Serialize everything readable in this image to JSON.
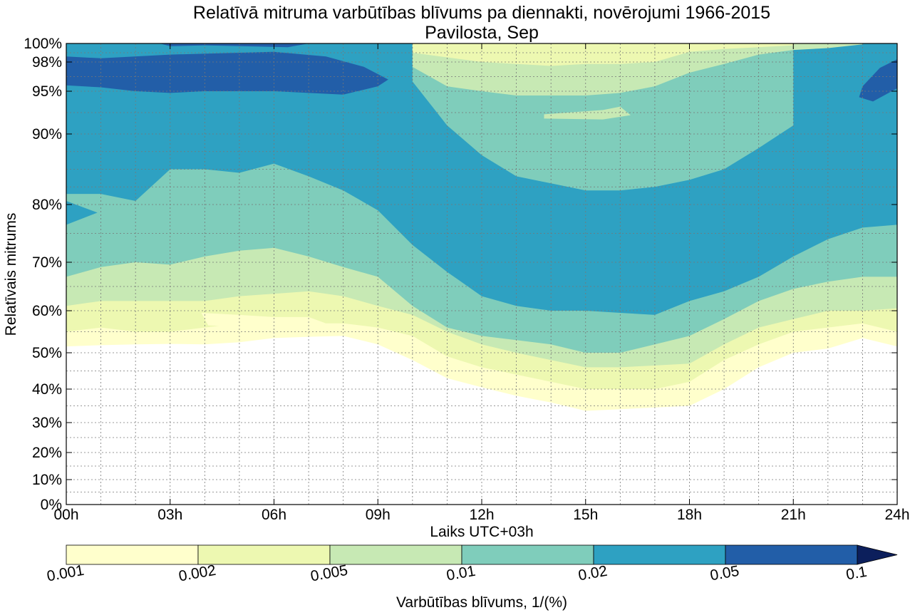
{
  "chart_data": {
    "type": "contour",
    "title": "Relatīvā mitruma varbūtības blīvums pa diennakti, novērojumi 1966-2015",
    "subtitle": "Pavilosta, Sep",
    "xlabel": "Laiks UTC+03h",
    "ylabel": "Relatīvais mitrums",
    "x_ticks": [
      "00h",
      "03h",
      "06h",
      "09h",
      "12h",
      "15h",
      "18h",
      "21h",
      "24h"
    ],
    "x_tick_hours": [
      0,
      3,
      6,
      9,
      12,
      15,
      18,
      21,
      24
    ],
    "y_ticks": [
      "0%",
      "10%",
      "20%",
      "30%",
      "40%",
      "50%",
      "60%",
      "70%",
      "80%",
      "90%",
      "95%",
      "98%",
      "100%"
    ],
    "y_tick_values": [
      0,
      10,
      20,
      30,
      40,
      50,
      60,
      70,
      80,
      90,
      95,
      98,
      100
    ],
    "xlim": [
      0,
      24
    ],
    "ylim": [
      0,
      100
    ],
    "y_scale": "nonlinear (stretched toward 100%)",
    "grid": true,
    "colorbar": {
      "label": "Varbūtības blīvums, 1/(%)",
      "levels": [
        "0.001",
        "0.002",
        "0.005",
        "0.01",
        "0.02",
        "0.05",
        "0.1"
      ],
      "colors": [
        "#ffffcc",
        "#edf8b1",
        "#c7e9b4",
        "#7fcdbb",
        "#2ea1c2",
        "#225ea8",
        "#0c1f5c"
      ],
      "extend": "max"
    },
    "contour_boundaries": {
      "hours": [
        0,
        1,
        2,
        3,
        4,
        5,
        6,
        7,
        8,
        9,
        10,
        11,
        12,
        13,
        14,
        15,
        16,
        17,
        18,
        19,
        20,
        21,
        22,
        23,
        24
      ],
      "level_0.001_lower": [
        51.5,
        51.8,
        52,
        52.1,
        52,
        52.5,
        53.5,
        53.8,
        54,
        52,
        48,
        43,
        40.5,
        38,
        36,
        33.5,
        34,
        34.5,
        35,
        40,
        46,
        50,
        51,
        53.5,
        51.5
      ],
      "level_0.002_lower": [
        55,
        56,
        55,
        55,
        56,
        57,
        57.5,
        57,
        57,
        56,
        54,
        49,
        46,
        44,
        42,
        40,
        40,
        40,
        42,
        48,
        52,
        55,
        56,
        57,
        55
      ],
      "level_0.005_lower": [
        61,
        62,
        62,
        62,
        62,
        63,
        63.5,
        64,
        63,
        61,
        59,
        55,
        52,
        50,
        48,
        46,
        46,
        46.5,
        47,
        52,
        56,
        58,
        60,
        60,
        60.5
      ],
      "level_0.01_lower": [
        67,
        69,
        70,
        69.5,
        71,
        72,
        72.5,
        71,
        69,
        67,
        61,
        56,
        54,
        53,
        52,
        50,
        50,
        52,
        54,
        58,
        62,
        64.5,
        66,
        67,
        67
      ],
      "level_0.02_lower": [
        81.5,
        81.5,
        80.5,
        85,
        85,
        84.5,
        85.8,
        84,
        82,
        79,
        73,
        68,
        63,
        61,
        60,
        60,
        59.5,
        59,
        62,
        64,
        67,
        71,
        74,
        76,
        76.5
      ],
      "level_0.05_lower": [
        95.6,
        95.4,
        95,
        94.8,
        95,
        95,
        95,
        94.8,
        94.6,
        95.5,
        null,
        null,
        null,
        null,
        null,
        null,
        null,
        null,
        null,
        null,
        null,
        null,
        null,
        95.2,
        97.8
      ],
      "level_0.005_upper": [
        null,
        null,
        null,
        null,
        null,
        null,
        null,
        null,
        null,
        null,
        99,
        98.5,
        98,
        97.8,
        97.6,
        97.8,
        97.8,
        98,
        99.1,
        99.4,
        99.6,
        99.8,
        null,
        null,
        null
      ],
      "level_0.01_upper": [
        null,
        null,
        null,
        null,
        null,
        null,
        null,
        null,
        null,
        null,
        97.5,
        95.5,
        95,
        94.5,
        94.5,
        94.5,
        94.8,
        95.5,
        96.9,
        97.8,
        98.8,
        99.3,
        99.5,
        99.9,
        null
      ],
      "level_0.02_upper": [
        null,
        null,
        null,
        null,
        null,
        null,
        null,
        null,
        null,
        null,
        96,
        91,
        87,
        84,
        83,
        82,
        82,
        82.5,
        83.5,
        85,
        88,
        91,
        null,
        null,
        null
      ]
    }
  }
}
